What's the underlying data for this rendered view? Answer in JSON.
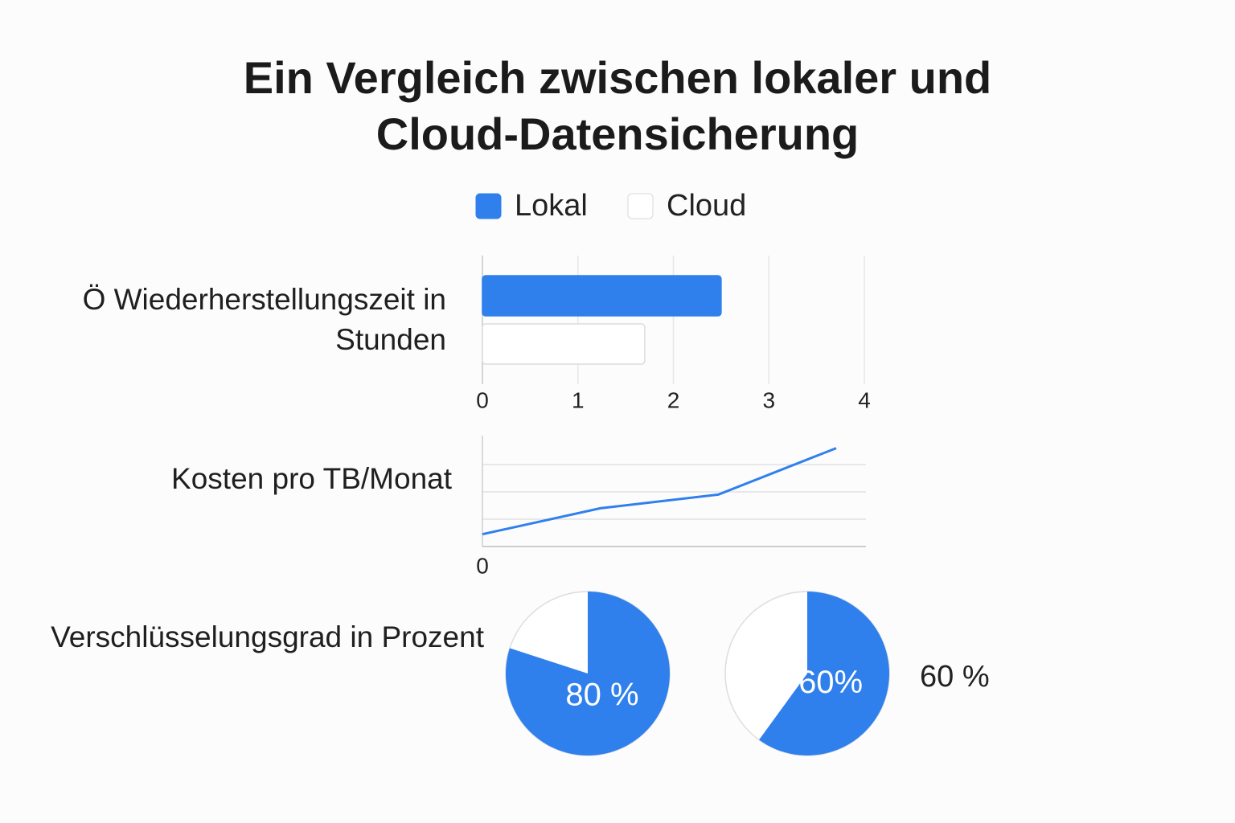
{
  "title": "Ein Vergleich zwischen lokaler und Cloud-Datensicherung",
  "chart_data": [
    {
      "type": "bar",
      "orientation": "horizontal",
      "categories": [
        "Ö Wiederherstellungszeit in Stunden"
      ],
      "series": [
        {
          "name": "Lokal",
          "color": "#2f80ed",
          "values": [
            2.5
          ]
        },
        {
          "name": "Cloud",
          "color": "#ffffff",
          "values": [
            1.7
          ]
        }
      ],
      "xlim": [
        0,
        4
      ],
      "xticks": [
        0,
        1,
        2,
        3,
        4
      ],
      "grid": true
    },
    {
      "type": "line",
      "label": "Kosten pro TB/Monat",
      "categories": [
        null,
        null,
        null,
        null
      ],
      "series": [
        {
          "color": "#2f80ed",
          "values": [
            0.45,
            1.4,
            1.9,
            3.6
          ]
        }
      ],
      "ylim": [
        0,
        4
      ],
      "yticks": [
        0
      ],
      "grid_lines": [
        1,
        2,
        3
      ]
    },
    {
      "type": "pie",
      "label": "Verschlüsselungsgrad in Prozent",
      "values": [
        80
      ],
      "value_labels": [
        "80 %"
      ],
      "color": "#2f80ed"
    },
    {
      "type": "pie",
      "values": [
        60
      ],
      "value_labels": [
        "60%"
      ],
      "color": "#2f80ed",
      "annotation": "60 %"
    }
  ]
}
